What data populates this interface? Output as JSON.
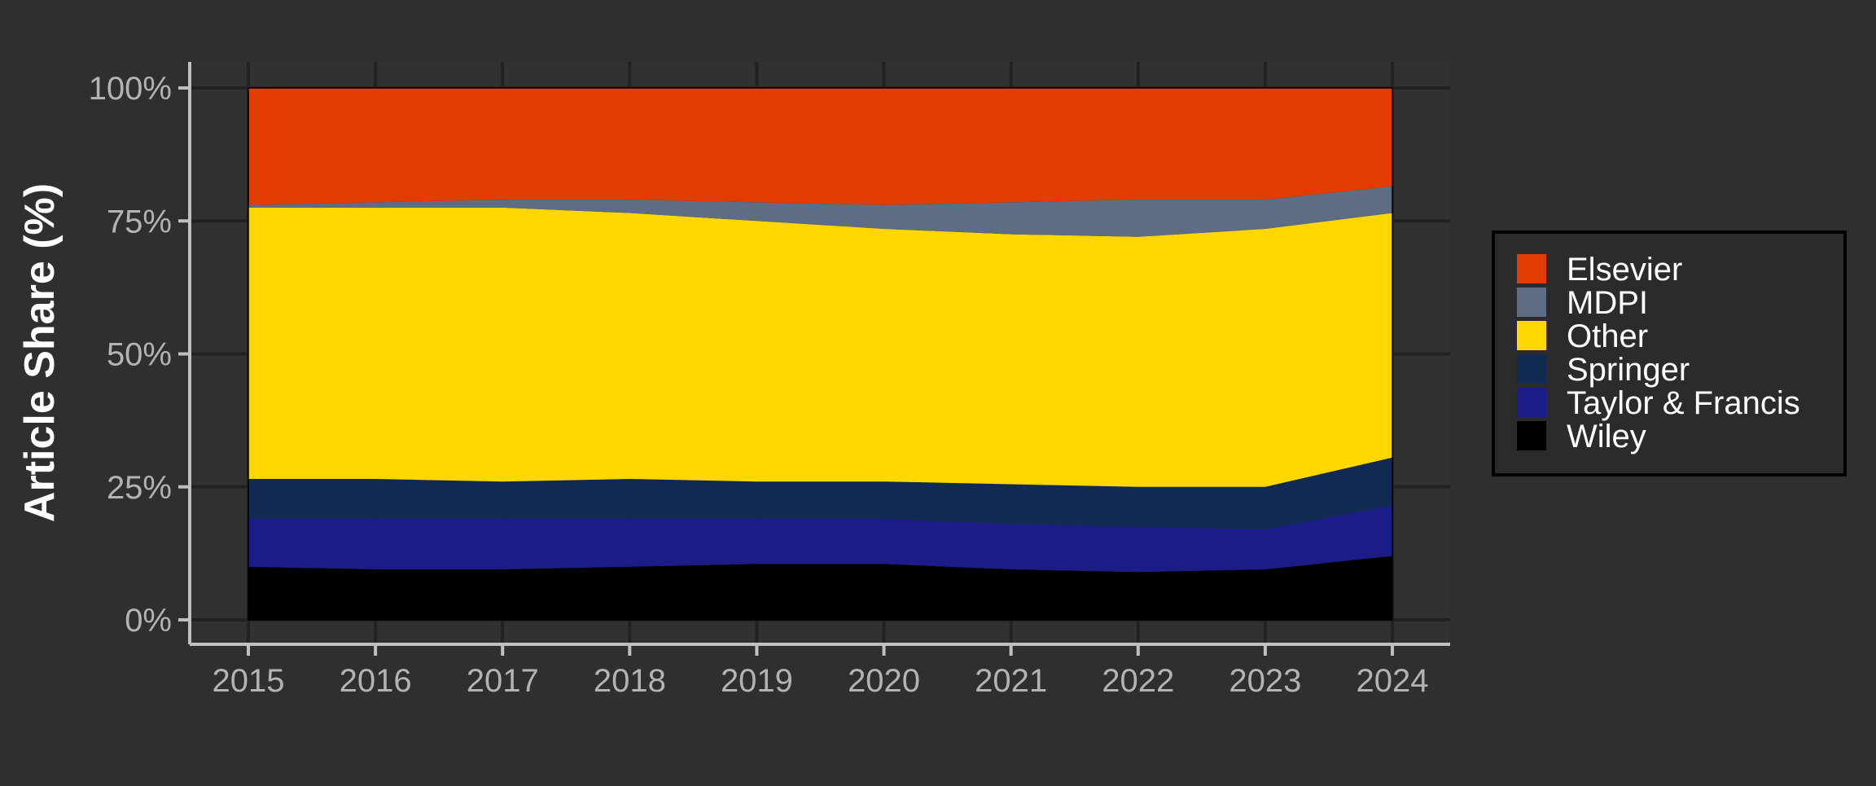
{
  "chart_data": {
    "type": "area",
    "stacked": true,
    "normalized": true,
    "x": [
      2015,
      2016,
      2017,
      2018,
      2019,
      2020,
      2021,
      2022,
      2023,
      2024
    ],
    "ylabel": "Article Share (%)",
    "xlabel": "",
    "ylim": [
      0,
      100
    ],
    "yticks": [
      0,
      25,
      50,
      75,
      100
    ],
    "ytick_labels": [
      "0%",
      "25%",
      "50%",
      "75%",
      "100%"
    ],
    "xtick_labels": [
      "2015",
      "2016",
      "2017",
      "2018",
      "2019",
      "2020",
      "2021",
      "2022",
      "2023",
      "2024"
    ],
    "grid": true,
    "legend_position": "right",
    "stack_order_bottom_to_top": [
      "Wiley",
      "Taylor & Francis",
      "Springer",
      "Other",
      "MDPI",
      "Elsevier"
    ],
    "series": [
      {
        "name": "Elsevier",
        "color": "#e23c00",
        "values": [
          22.0,
          21.5,
          21.0,
          21.0,
          21.5,
          22.0,
          21.5,
          21.0,
          21.0,
          18.5
        ]
      },
      {
        "name": "MDPI",
        "color": "#5e6c84",
        "values": [
          0.5,
          1.0,
          1.5,
          2.5,
          3.5,
          4.5,
          6.0,
          7.0,
          5.5,
          5.0
        ]
      },
      {
        "name": "Other",
        "color": "#ffd700",
        "values": [
          51.0,
          51.0,
          51.5,
          50.0,
          49.0,
          47.5,
          47.0,
          47.0,
          48.5,
          46.0
        ]
      },
      {
        "name": "Springer",
        "color": "#112a52",
        "values": [
          7.5,
          7.5,
          7.0,
          7.5,
          7.0,
          7.0,
          7.5,
          7.5,
          8.0,
          9.0
        ]
      },
      {
        "name": "Taylor & Francis",
        "color": "#1c1c88",
        "values": [
          9.0,
          9.5,
          9.5,
          9.0,
          8.5,
          8.5,
          8.5,
          8.5,
          7.5,
          9.5
        ]
      },
      {
        "name": "Wiley",
        "color": "#000000",
        "values": [
          10.0,
          9.5,
          9.5,
          10.0,
          10.5,
          10.5,
          9.5,
          9.0,
          9.5,
          12.0
        ]
      }
    ]
  },
  "colors": {
    "background": "#2f2f2f",
    "panel": "#313131",
    "grid": "#222222",
    "axis_line": "#c0c0c0",
    "tick_text": "#b3b3b3",
    "legend_box": "#2b2b2b",
    "legend_border": "#000000"
  }
}
